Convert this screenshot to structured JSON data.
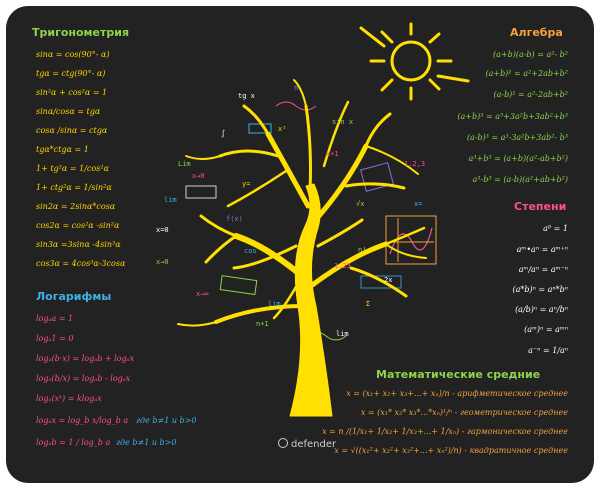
{
  "trig": {
    "heading": "Тригонометрия",
    "items": [
      "sinα = cos(90°- α)",
      "tgα = ctg(90°- α)",
      "sin²α + cos²α = 1",
      "sinα/cosα = tgα",
      "cosα /sinα = ctgα",
      "tgα*ctgα = 1",
      "1+ tg²α = 1/cos²α",
      "1+ ctg²α = 1/sin²α",
      "sin2α = 2sinα*cosα",
      "cos2α = cos²α -sin²α",
      "sin3α =3sinα -4sin³α",
      "cos3α = 4cos³α-3cosα"
    ]
  },
  "log": {
    "heading": "Логарифмы",
    "items": [
      "logₐa = 1",
      "logₐ1 = 0",
      "logₐ(b·x) = logₐb + logₐx",
      "logₐ(b/x) = logₐb - logₐx",
      "logₐ(xᵏ) = klogₐx",
      "logₐx = log_b x/log_b a",
      "logₐb = 1 / log_b a"
    ],
    "conditions": [
      "где  b≠1  и  b>0",
      "где  b≠1  и  b>0"
    ]
  },
  "algebra": {
    "heading": "Алгебра",
    "items": [
      "(a+b)(a-b) = a²- b²",
      "(a+b)² = a²+2ab+b²",
      "(a-b)² = a²-2ab+b²",
      "(a+b)³ = a³+3a²b+3ab²+b³",
      "(a-b)³ = a³-3a²b+3ab²- b³",
      "a³+b³ = (a+b)(a²-ab+b²)",
      "a³-b³ = (a-b)(a²+ab+b²)"
    ]
  },
  "powers": {
    "heading": "Степени",
    "items": [
      "a⁰ = 1",
      "aᵐ•aⁿ = aᵐ⁺ⁿ",
      "aᵐ/aⁿ = aᵐ⁻ⁿ",
      "(a*b)ⁿ = aⁿ*bⁿ",
      "(a/b)ⁿ = aⁿ/bⁿ",
      "(aᵐ)ⁿ = aᵐⁿ",
      "a⁻ⁿ = 1/aⁿ"
    ]
  },
  "means": {
    "heading": "Математические средние",
    "items": [
      {
        "formula": "x = (x₁+ x₂+ x₃+...+ xₙ)/n",
        "name": " - арифметическое среднее"
      },
      {
        "formula": "x = (x₁* x₂* x₃*...*xₙ)¹/ⁿ",
        "name": " - геометрическое среднее"
      },
      {
        "formula": "x = n /(1/x₁+ 1/x₂+ 1/x₃+...+ 1/xₙ)",
        "name": " - гармоническое среднее"
      },
      {
        "formula": "x = √((x₁²+ x₂²+ x₃²+...+ xₙ²)/n)",
        "name": " - квадратичное среднее"
      }
    ]
  },
  "tree_scribbles": [
    "Lim",
    "x→0",
    "tg x",
    "1.2,3",
    "sin x",
    "lim",
    "x=0",
    "f(x)",
    "x²",
    "√x",
    "1.23",
    "cos",
    "∫",
    "Σ",
    "x→∞",
    "n+1",
    "lim",
    "x=",
    "π",
    "x→0",
    "2x",
    "n!",
    "y=",
    "lim",
    "x+1"
  ],
  "brand": "defender",
  "colors": {
    "background": "#222222",
    "trig": "#ffd200",
    "trig_heading": "#8ed34b",
    "log": "#ff4f8c",
    "log_heading": "#3fb0e6",
    "algebra": "#8ed34b",
    "algebra_heading": "#f4a23c",
    "powers": "#ffffff",
    "powers_heading": "#ff4f8c",
    "means": "#f4a23c",
    "means_heading": "#8ed34b",
    "sun": "#ffe000",
    "tree": "#ffe000"
  }
}
